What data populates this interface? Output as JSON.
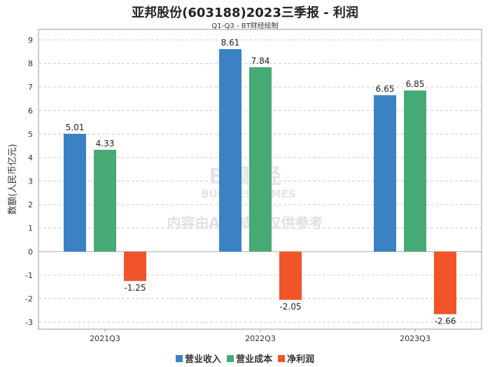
{
  "chart_data": {
    "type": "bar",
    "title": "亚邦股份(603188)2023三季报 - 利润",
    "subtitle": "Q1-Q3 - BT财经绘制",
    "xlabel": "",
    "ylabel": "数额(人民币亿元)",
    "ylim": [
      -3,
      9
    ],
    "yticks": [
      9,
      8,
      7,
      6,
      5,
      4,
      3,
      2,
      1,
      0,
      -1,
      -2,
      -3
    ],
    "grid": true,
    "legend_position": "bottom",
    "categories": [
      "2021Q3",
      "2022Q3",
      "2023Q3"
    ],
    "series": [
      {
        "name": "营业收入",
        "color": "#3a82c4",
        "values": [
          5.01,
          8.61,
          6.65
        ]
      },
      {
        "name": "营业成本",
        "color": "#46aa74",
        "values": [
          4.33,
          7.84,
          6.85
        ]
      },
      {
        "name": "净利润",
        "color": "#f05428",
        "values": [
          -1.25,
          -2.05,
          -2.66
        ]
      }
    ]
  },
  "watermark": {
    "brand": "BT财经",
    "brand_en": "BUSINESSTIMES",
    "notice": "内容由AI生成，仅供参考"
  }
}
